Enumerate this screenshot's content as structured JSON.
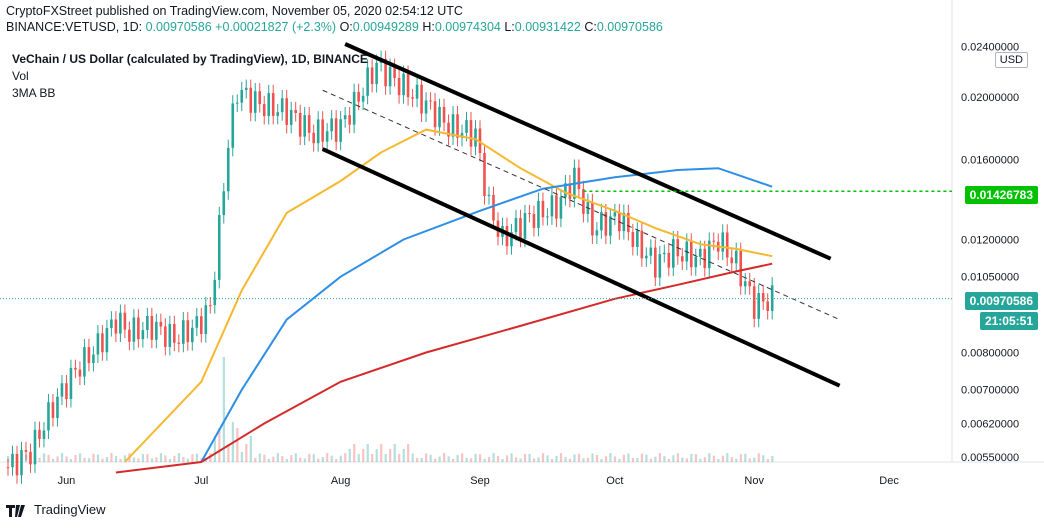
{
  "header": {
    "line1": "CryptoFXStreet published on TradingView.com, November 05, 2020 02:54:12 UTC",
    "symbol": "BINANCE:VETUSD, 1D",
    "price": "0.00970586",
    "change": "+0.00021827 (+2.3%)",
    "o_label": "O:",
    "o": "0.00949289",
    "h_label": "H:",
    "h": "0.00974304",
    "l_label": "L:",
    "l": "0.00931422",
    "c_label": "C:",
    "c": "0.00970586"
  },
  "legend": {
    "title": "VeChain / US Dollar (calculated by TradingView), 1D, BINANCE",
    "vol": "Vol",
    "ma": "3MA BB"
  },
  "axis": {
    "currency_button": "USD",
    "last_price_tag": "0.00970586",
    "countdown_tag": "21:05:51",
    "level_tag": "0.01426783"
  },
  "footer": {
    "brand": "TradingView"
  },
  "colors": {
    "up": "#26a69a",
    "down": "#ef5350",
    "ma_fast": "#f5b82e",
    "ma_mid": "#2d8fe6",
    "ma_slow": "#d42a2a",
    "level": "#00c200",
    "channel": "#000000"
  },
  "chart_data": {
    "type": "candlestick",
    "y_scale": "log",
    "ylim": [
      0.0054,
      0.0242
    ],
    "y_ticks": [
      "0.00550000",
      "0.00620000",
      "0.00700000",
      "0.00800000",
      "0.01050000",
      "0.01200000",
      "0.01600000",
      "0.02000000",
      "0.02400000"
    ],
    "x_labels": [
      "Jun",
      "Jul",
      "Aug",
      "Sep",
      "Oct",
      "Nov",
      "Dec"
    ],
    "horizontal_levels": [
      0.01426783
    ],
    "last_price": 0.00970586,
    "series": [
      {
        "name": "close",
        "points": [
          [
            "2020-05-19",
            0.0053
          ],
          [
            "2020-05-24",
            0.0056
          ],
          [
            "2020-05-29",
            0.0066
          ],
          [
            "2020-06-03",
            0.0075
          ],
          [
            "2020-06-08",
            0.0082
          ],
          [
            "2020-06-12",
            0.009
          ],
          [
            "2020-06-15",
            0.0086
          ],
          [
            "2020-06-20",
            0.0088
          ],
          [
            "2020-06-25",
            0.0084
          ],
          [
            "2020-06-30",
            0.0088
          ],
          [
            "2020-07-03",
            0.0094
          ],
          [
            "2020-07-05",
            0.0125
          ],
          [
            "2020-07-07",
            0.017
          ],
          [
            "2020-07-09",
            0.0205
          ],
          [
            "2020-07-14",
            0.0195
          ],
          [
            "2020-07-20",
            0.019
          ],
          [
            "2020-07-26",
            0.0175
          ],
          [
            "2020-08-01",
            0.018
          ],
          [
            "2020-08-05",
            0.02
          ],
          [
            "2020-08-09",
            0.0225
          ],
          [
            "2020-08-14",
            0.021
          ],
          [
            "2020-08-20",
            0.0195
          ],
          [
            "2020-08-25",
            0.018
          ],
          [
            "2020-08-31",
            0.0175
          ],
          [
            "2020-09-03",
            0.0135
          ],
          [
            "2020-09-06",
            0.012
          ],
          [
            "2020-09-12",
            0.013
          ],
          [
            "2020-09-18",
            0.0135
          ],
          [
            "2020-09-22",
            0.015
          ],
          [
            "2020-09-26",
            0.0125
          ],
          [
            "2020-10-02",
            0.013
          ],
          [
            "2020-10-06",
            0.0118
          ],
          [
            "2020-10-10",
            0.011
          ],
          [
            "2020-10-14",
            0.0115
          ],
          [
            "2020-10-20",
            0.0112
          ],
          [
            "2020-10-24",
            0.012
          ],
          [
            "2020-10-28",
            0.011
          ],
          [
            "2020-11-01",
            0.0095
          ],
          [
            "2020-11-05",
            0.0097
          ]
        ]
      },
      {
        "name": "ma_fast",
        "points": [
          [
            "2020-06-14",
            0.0054
          ],
          [
            "2020-07-01",
            0.0072
          ],
          [
            "2020-07-10",
            0.01
          ],
          [
            "2020-07-20",
            0.0132
          ],
          [
            "2020-08-01",
            0.0148
          ],
          [
            "2020-08-10",
            0.0164
          ],
          [
            "2020-08-20",
            0.0178
          ],
          [
            "2020-08-31",
            0.0172
          ],
          [
            "2020-09-10",
            0.0155
          ],
          [
            "2020-09-20",
            0.0142
          ],
          [
            "2020-10-01",
            0.0133
          ],
          [
            "2020-10-10",
            0.0125
          ],
          [
            "2020-10-20",
            0.0118
          ],
          [
            "2020-10-28",
            0.0116
          ],
          [
            "2020-11-05",
            0.0113
          ]
        ]
      },
      {
        "name": "ma_mid",
        "points": [
          [
            "2020-07-01",
            0.0054
          ],
          [
            "2020-07-10",
            0.007
          ],
          [
            "2020-07-20",
            0.009
          ],
          [
            "2020-08-01",
            0.0105
          ],
          [
            "2020-08-15",
            0.012
          ],
          [
            "2020-09-01",
            0.0133
          ],
          [
            "2020-09-15",
            0.0144
          ],
          [
            "2020-10-01",
            0.015
          ],
          [
            "2020-10-15",
            0.0154
          ],
          [
            "2020-10-24",
            0.0155
          ],
          [
            "2020-11-05",
            0.0145
          ]
        ]
      },
      {
        "name": "ma_slow",
        "points": [
          [
            "2020-06-12",
            0.0052
          ],
          [
            "2020-07-01",
            0.0054
          ],
          [
            "2020-07-15",
            0.0062
          ],
          [
            "2020-08-01",
            0.0072
          ],
          [
            "2020-08-20",
            0.008
          ],
          [
            "2020-09-10",
            0.0088
          ],
          [
            "2020-10-01",
            0.0097
          ],
          [
            "2020-10-15",
            0.0102
          ],
          [
            "2020-10-28",
            0.0107
          ],
          [
            "2020-11-05",
            0.011
          ]
        ]
      }
    ]
  }
}
